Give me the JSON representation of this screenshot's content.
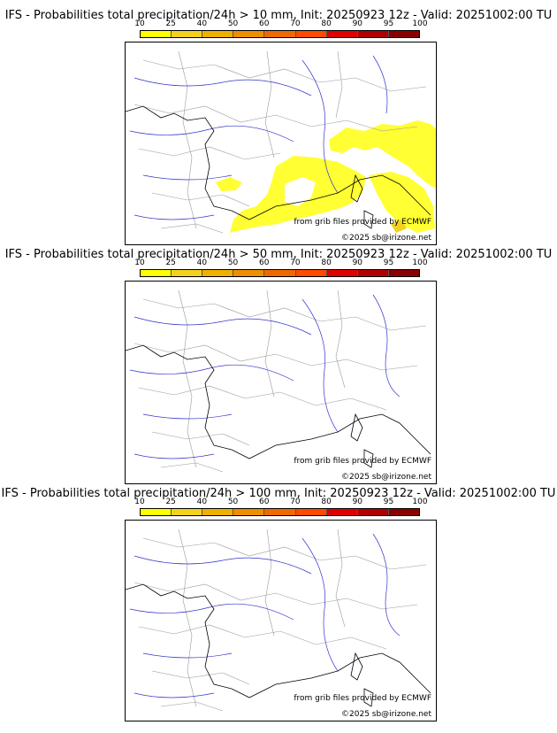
{
  "scale": {
    "ticks": [
      "10",
      "25",
      "40",
      "50",
      "60",
      "70",
      "80",
      "90",
      "95",
      "100"
    ],
    "colors": [
      "#ffff00",
      "#f2d21c",
      "#f0b000",
      "#ee8f00",
      "#ee6a00",
      "#ff4a00",
      "#e00000",
      "#b00000",
      "#8a0000",
      "#5a0000"
    ]
  },
  "panels": [
    {
      "title": "IFS - Probabilities total precipitation/24h > 10 mm, Init: 20250923 12z - Valid: 20251002:00 TU",
      "source_credit": "from grib files provided by ECMWF",
      "copyright": "©2025 sb@irizone.net",
      "has_precip_area": true
    },
    {
      "title": "IFS - Probabilities total precipitation/24h > 50 mm, Init: 20250923 12z - Valid: 20251002:00 TU",
      "source_credit": "from grib files provided by ECMWF",
      "copyright": "©2025 sb@irizone.net",
      "has_precip_area": false
    },
    {
      "title": "IFS - Probabilities total precipitation/24h > 100 mm, Init: 20250923 12z - Valid: 20251002:00 TU",
      "source_credit": "from grib files provided by ECMWF",
      "copyright": "©2025 sb@irizone.net",
      "has_precip_area": false
    }
  ]
}
